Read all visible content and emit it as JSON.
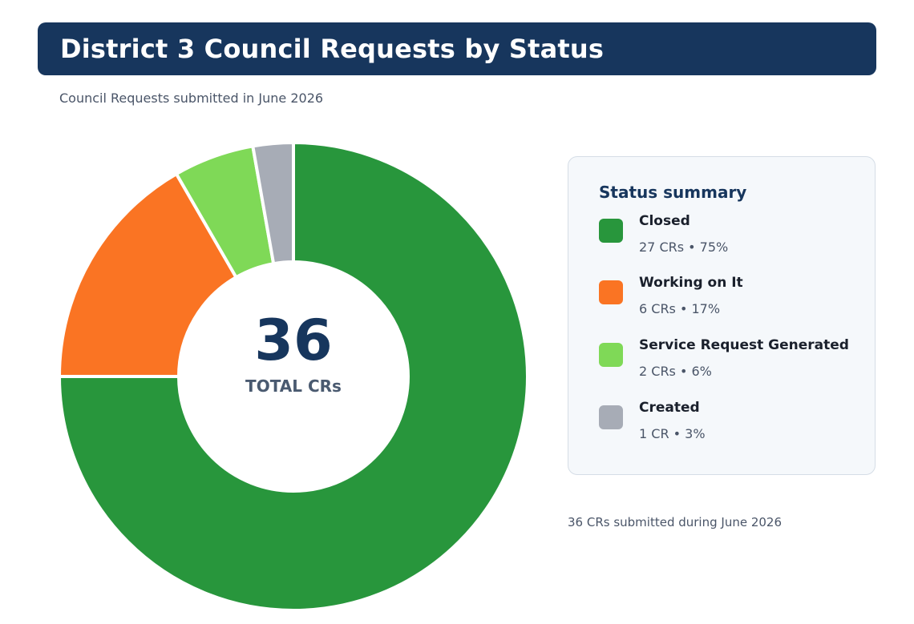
{
  "title": "District 3 Council Requests by Status",
  "subtitle": "Council Requests submitted in June 2026",
  "center": {
    "total": "36",
    "label": "TOTAL CRs"
  },
  "summary": {
    "heading": "Status summary",
    "items": [
      {
        "name": "Closed",
        "detail": "27 CRs  •  75%"
      },
      {
        "name": "Working on It",
        "detail": "6 CRs  •  17%"
      },
      {
        "name": "Service Request Generated",
        "detail": "2 CRs  •  6%"
      },
      {
        "name": "Created",
        "detail": "1 CR  •  3%"
      }
    ]
  },
  "footnote": "36 CRs submitted during June 2026",
  "colors": {
    "title_bg": "#17365d",
    "closed": "#28963c",
    "working": "#fa7423",
    "service": "#7fd957",
    "created": "#a7acb6"
  },
  "chart_data": {
    "type": "pie",
    "title": "District 3 Council Requests by Status",
    "subtitle": "Council Requests submitted in June 2026",
    "categories": [
      "Closed",
      "Working on It",
      "Service Request Generated",
      "Created"
    ],
    "values": [
      27,
      6,
      2,
      1
    ],
    "percentages": [
      75,
      17,
      6,
      3
    ],
    "colors": [
      "#28963c",
      "#fa7423",
      "#7fd957",
      "#a7acb6"
    ],
    "total": 36,
    "legend_placement": "right"
  }
}
